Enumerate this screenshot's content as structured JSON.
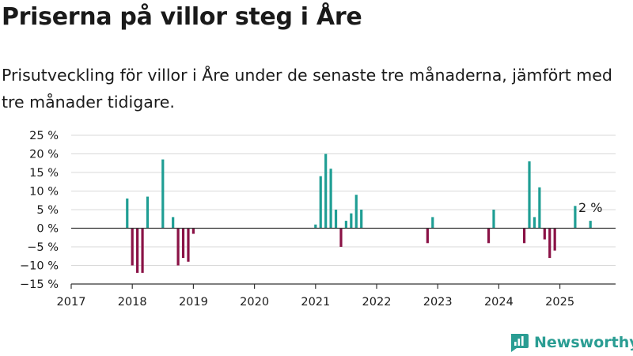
{
  "title": "Priserna på villor steg i Åre",
  "subtitle": "Prisutveckling för villor i Åre under de senaste tre månaderna, jämfört med tre månader tidigare.",
  "colors": {
    "positive": "#1f9e94",
    "negative": "#8a1246",
    "grid": "#d9d9d9",
    "zero_line": "#333333",
    "brand": "#2a9d93"
  },
  "brand": {
    "name": "Newsworthy",
    "icon": "newsworthy-logo-icon"
  },
  "chart_data": {
    "type": "bar",
    "title": "Priserna på villor steg i Åre",
    "xlabel": "",
    "ylabel": "",
    "grid": true,
    "legend": "none",
    "ylim": [
      -15,
      25
    ],
    "yticks": [
      25,
      20,
      15,
      10,
      5,
      0,
      -5,
      -10,
      -15
    ],
    "ytick_labels": [
      "25 %",
      "20 %",
      "15 %",
      "10 %",
      "5 %",
      "0 %",
      "−5 %",
      "−10 %",
      "−15 %"
    ],
    "xlim": [
      "2017-01",
      "2025-12"
    ],
    "xticks": [
      "2017",
      "2018",
      "2019",
      "2020",
      "2021",
      "2022",
      "2023",
      "2024",
      "2025"
    ],
    "units": "%",
    "points": [
      {
        "x": "2017-12",
        "y": 8
      },
      {
        "x": "2018-01",
        "y": -10
      },
      {
        "x": "2018-02",
        "y": -12
      },
      {
        "x": "2018-03",
        "y": -12
      },
      {
        "x": "2018-04",
        "y": 8.5
      },
      {
        "x": "2018-07",
        "y": 18.5
      },
      {
        "x": "2018-09",
        "y": 3
      },
      {
        "x": "2018-10",
        "y": -10
      },
      {
        "x": "2018-11",
        "y": -8
      },
      {
        "x": "2018-12",
        "y": -9
      },
      {
        "x": "2019-01",
        "y": -1.5
      },
      {
        "x": "2021-01",
        "y": 1
      },
      {
        "x": "2021-02",
        "y": 14
      },
      {
        "x": "2021-03",
        "y": 20
      },
      {
        "x": "2021-04",
        "y": 16
      },
      {
        "x": "2021-05",
        "y": 5
      },
      {
        "x": "2021-06",
        "y": -5
      },
      {
        "x": "2021-07",
        "y": 2
      },
      {
        "x": "2021-08",
        "y": 4
      },
      {
        "x": "2021-09",
        "y": 9
      },
      {
        "x": "2021-10",
        "y": 5
      },
      {
        "x": "2022-11",
        "y": -4
      },
      {
        "x": "2022-12",
        "y": 3
      },
      {
        "x": "2023-11",
        "y": -4
      },
      {
        "x": "2023-12",
        "y": 5
      },
      {
        "x": "2024-06",
        "y": -4
      },
      {
        "x": "2024-07",
        "y": 18
      },
      {
        "x": "2024-08",
        "y": 3
      },
      {
        "x": "2024-09",
        "y": 11
      },
      {
        "x": "2024-10",
        "y": -3
      },
      {
        "x": "2024-11",
        "y": -8
      },
      {
        "x": "2024-12",
        "y": -6
      },
      {
        "x": "2025-04",
        "y": 6
      },
      {
        "x": "2025-07",
        "y": 2
      }
    ],
    "annotation": {
      "x": "2025-07",
      "text": "2 %"
    }
  }
}
